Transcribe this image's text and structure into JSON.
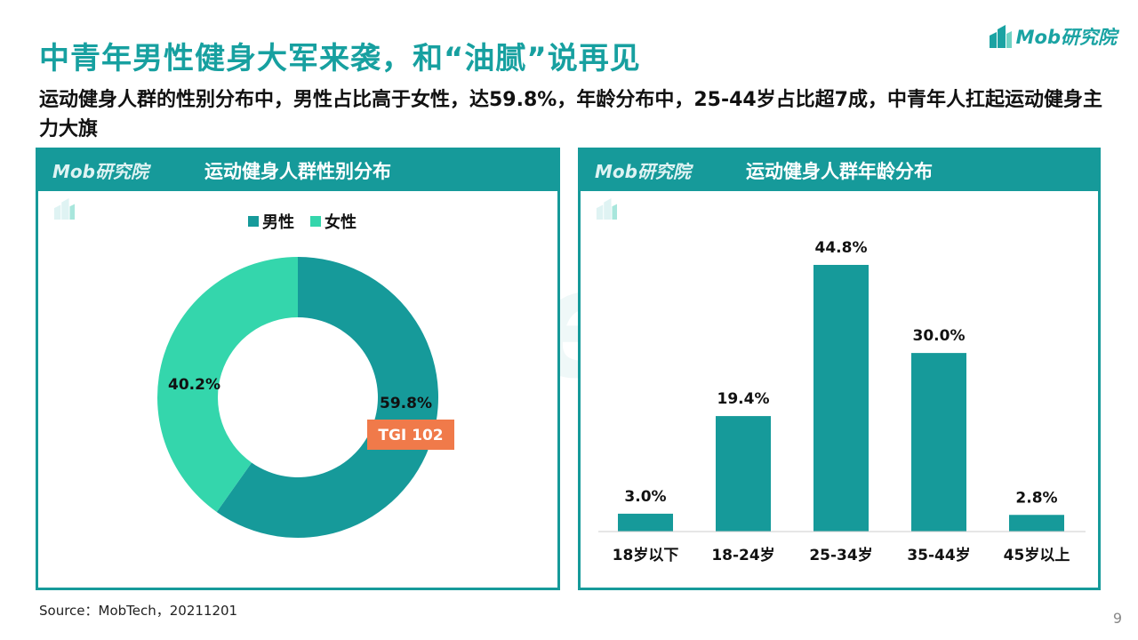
{
  "header": {
    "title": "中青年男性健身大军来袭，和“油腻”说再见",
    "subtitle": "运动健身人群的性别分布中，男性占比高于女性，达59.8%，年龄分布中，25-44岁占比超7成，中青年人扛起运动健身主力大旗",
    "brand": "Mob研究院"
  },
  "panels": {
    "left": {
      "brand": "Mob研究院",
      "title": "运动健身人群性别分布"
    },
    "right": {
      "brand": "Mob研究院",
      "title": "运动健身人群年龄分布"
    }
  },
  "footer": {
    "source": "Source：MobTech，20211201",
    "page": "9"
  },
  "colors": {
    "teal": "#169a9a",
    "mint": "#34d6ac",
    "orange": "#f07a4a",
    "title": "#17a0a0"
  },
  "chart_data": [
    {
      "type": "pie",
      "title": "运动健身人群性别分布",
      "categories": [
        "男性",
        "女性"
      ],
      "values": [
        59.8,
        40.2
      ],
      "labels": [
        "59.8%",
        "40.2%"
      ],
      "colors": [
        "#169a9a",
        "#34d6ac"
      ],
      "legend_position": "top",
      "annotation": "TGI 102"
    },
    {
      "type": "bar",
      "title": "运动健身人群年龄分布",
      "categories": [
        "18岁以下",
        "18-24岁",
        "25-34岁",
        "35-44岁",
        "45岁以上"
      ],
      "values": [
        3.0,
        19.4,
        44.8,
        30.0,
        2.8
      ],
      "labels": [
        "3.0%",
        "19.4%",
        "44.8%",
        "30.0%",
        "2.8%"
      ],
      "color": "#169a9a",
      "ylim": [
        0,
        50
      ],
      "grid": false
    }
  ]
}
